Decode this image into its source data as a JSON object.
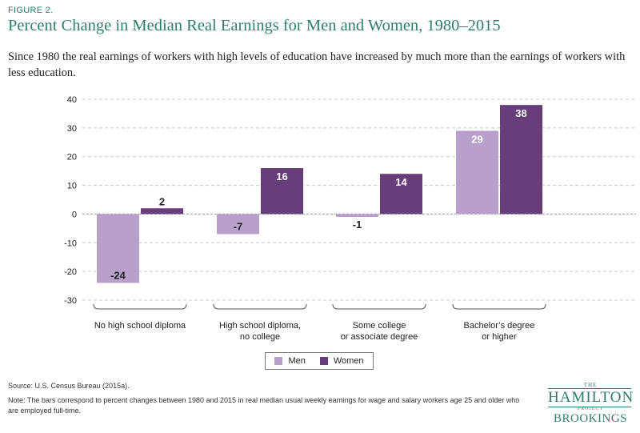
{
  "figure_label": "FIGURE 2.",
  "title": "Percent Change in Median Real Earnings for Men and Women, 1980–2015",
  "subtitle": "Since 1980 the real earnings of workers with high levels of education have increased by much more than the earnings of workers with less education.",
  "source": "Source: U.S. Census Bureau (2015a).",
  "note": "Note: The bars correspond to percent changes between 1980 and 2015 in real median usual weekly earnings for wage and salary workers age 25 and older who are employed full-time.",
  "logo": {
    "the": "THE",
    "name": "HAMILTON",
    "project": "PROJECT",
    "brookings": "BROOKINGS"
  },
  "legend": {
    "men": "Men",
    "women": "Women"
  },
  "colors": {
    "men": "#b9a0cb",
    "women": "#673d7a",
    "title": "#2f7d6c",
    "grid": "#c8c8c8"
  },
  "chart_data": {
    "type": "bar",
    "categories": [
      [
        "No high school diploma"
      ],
      [
        "High school diploma,",
        "no college"
      ],
      [
        "Some college",
        "or associate degree"
      ],
      [
        "Bachelor’s degree",
        "or higher"
      ]
    ],
    "series": [
      {
        "name": "Men",
        "values": [
          -24,
          -7,
          -1,
          29
        ]
      },
      {
        "name": "Women",
        "values": [
          2,
          16,
          14,
          38
        ]
      }
    ],
    "ylim": [
      -30,
      40
    ],
    "yticks": [
      40,
      30,
      20,
      10,
      0,
      -10,
      -20,
      -30
    ],
    "grid": true,
    "legend_position": "bottom-center",
    "data_labels": true,
    "xlabel": "",
    "ylabel": ""
  }
}
